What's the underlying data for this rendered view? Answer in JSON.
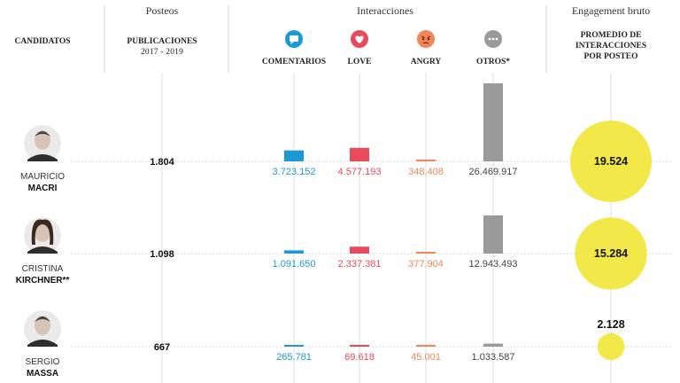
{
  "header": {
    "col_candidates": "CANDIDATOS",
    "group_posts": "Posteos",
    "col_posts": [
      "PUBLICACIONES",
      "2017 - 2019"
    ],
    "group_interactions": "Interacciones",
    "group_engagement": "Engagement bruto",
    "col_engagement": [
      "PROMEDIO DE",
      "INTERACCIONES",
      "POR POSTEO"
    ]
  },
  "chart_data": {
    "type": "bar",
    "categories": [
      "COMENTARIOS",
      "LOVE",
      "ANGRY",
      "OTROS*"
    ],
    "series_colors": [
      "#1b9ad6",
      "#e8495c",
      "#f0865a",
      "#9a9a9a"
    ],
    "category_icons": [
      "speech-bubble-icon",
      "heart-icon",
      "angry-face-icon",
      "ellipsis-icon"
    ],
    "engagement_color": "#f2e84a",
    "candidates": [
      {
        "first_name": "MAURICIO",
        "last_name": "MACRI",
        "posts": "1.804",
        "values": [
          3723152,
          4577193,
          348408,
          26469917
        ],
        "value_labels": [
          "3.723.152",
          "4.577.193",
          "348.408",
          "26.469.917"
        ],
        "engagement": 19524,
        "engagement_label": "19.524"
      },
      {
        "first_name": "CRISTINA",
        "last_name": "KIRCHNER**",
        "posts": "1.098",
        "values": [
          1091650,
          2337381,
          377904,
          12943493
        ],
        "value_labels": [
          "1.091.650",
          "2.337.381",
          "377.904",
          "12.943.493"
        ],
        "engagement": 15284,
        "engagement_label": "15.284"
      },
      {
        "first_name": "SERGIO",
        "last_name": "MASSA",
        "posts": "667",
        "values": [
          265781,
          69618,
          45001,
          1033587
        ],
        "value_labels": [
          "265.781",
          "69.618",
          "45.001",
          "1.033.587"
        ],
        "engagement": 2128,
        "engagement_label": "2.128"
      }
    ]
  }
}
